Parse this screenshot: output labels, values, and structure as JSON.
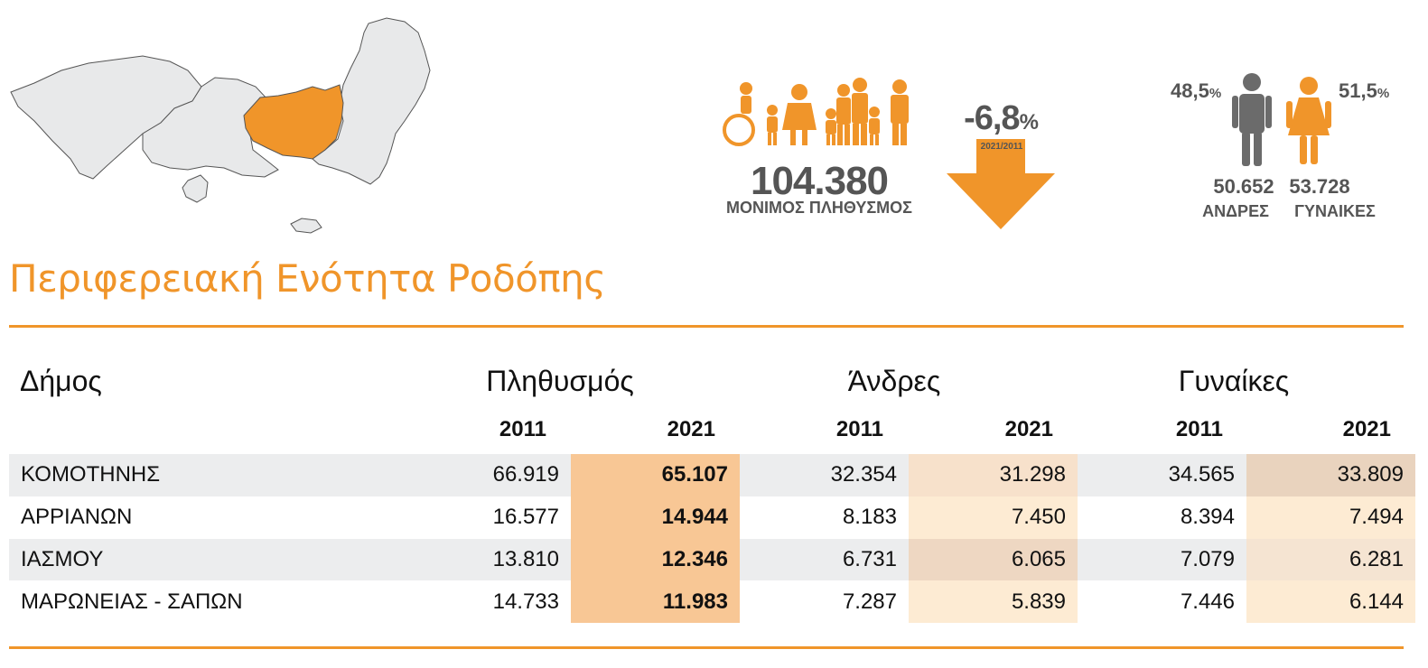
{
  "section_title": "Περιφερειακή Ενότητα Ροδόπης",
  "population": {
    "total": "104.380",
    "label": "ΜΟΝΙΜΟΣ ΠΛΗΘΥΣΜΟΣ",
    "change": "-6,8",
    "change_unit": "%",
    "change_period": "2021/2011"
  },
  "gender": {
    "male_pct": "48,5",
    "female_pct": "51,5",
    "pct_sign": "%",
    "male_count": "50.652",
    "female_count": "53.728",
    "male_label": "ΑΝΔΡΕΣ",
    "female_label": "ΓΥΝΑΙΚΕΣ"
  },
  "colors": {
    "accent": "#F0952A",
    "highlight": "#F8C795",
    "stat_text": "#555555"
  },
  "table": {
    "col_municipality": "Δήμος",
    "col_population": "Πληθυσμός",
    "col_men": "Άνδρες",
    "col_women": "Γυναίκες",
    "years": [
      "2011",
      "2021",
      "2011",
      "2021",
      "2011",
      "2021"
    ],
    "rows": [
      {
        "name": "ΚΟΜΟΤΗΝΗΣ",
        "values": [
          "66.919",
          "65.107",
          "32.354",
          "31.298",
          "34.565",
          "33.809"
        ]
      },
      {
        "name": "ΑΡΡΙΑΝΩΝ",
        "values": [
          "16.577",
          "14.944",
          "8.183",
          "7.450",
          "8.394",
          "7.494"
        ]
      },
      {
        "name": "ΙΑΣΜΟΥ",
        "values": [
          "13.810",
          "12.346",
          "6.731",
          "6.065",
          "7.079",
          "6.281"
        ]
      },
      {
        "name": "ΜΑΡΩΝΕΙΑΣ - ΣΑΠΩΝ",
        "values": [
          "14.733",
          "11.983",
          "7.287",
          "5.839",
          "7.446",
          "6.144"
        ]
      }
    ]
  }
}
